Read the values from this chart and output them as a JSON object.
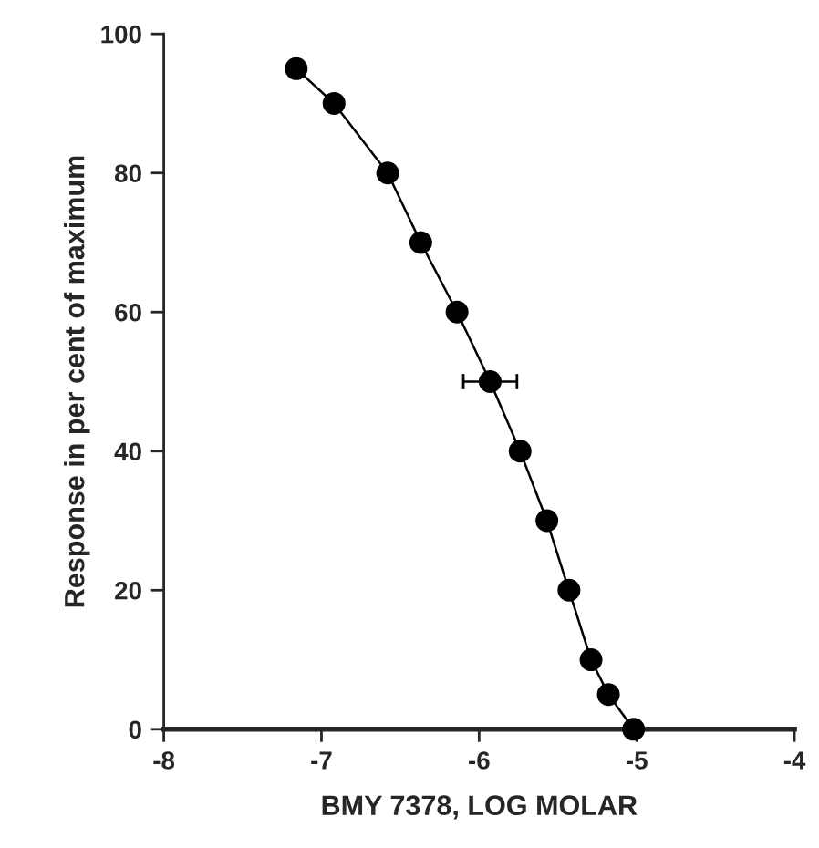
{
  "chart_data": {
    "type": "line",
    "xlabel": "BMY 7378, LOG MOLAR",
    "ylabel": "Response in per cent of maximum",
    "series": [
      {
        "color": "#000000",
        "x": [
          -7.16,
          -6.92,
          -6.58,
          -6.37,
          -6.14,
          -5.93,
          -5.74,
          -5.57,
          -5.43,
          -5.29,
          -5.18,
          -5.02
        ],
        "values": [
          95,
          90,
          80,
          70,
          60,
          50,
          40,
          30,
          20,
          10,
          5,
          0
        ],
        "xerrors": [
          null,
          null,
          null,
          null,
          null,
          [
            -6.1,
            -5.76
          ],
          null,
          null,
          null,
          null,
          null,
          null
        ]
      }
    ],
    "marker": "circle",
    "line_style": "solid",
    "grid": false,
    "legend": false,
    "xlim": [
      -8,
      -4
    ],
    "ylim": [
      0,
      100
    ],
    "xticks": [
      -8,
      -7,
      -6,
      -5,
      -4
    ],
    "yticks": [
      0,
      20,
      40,
      60,
      80,
      100
    ]
  }
}
